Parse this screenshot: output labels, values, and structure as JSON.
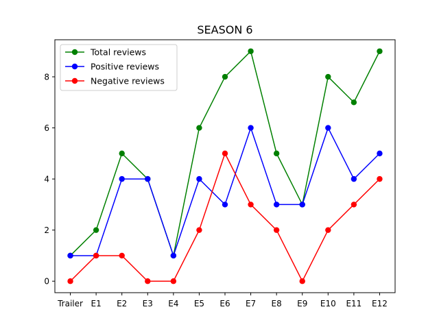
{
  "chart_data": {
    "type": "line",
    "title": "SEASON 6",
    "xlabel": "",
    "ylabel": "",
    "categories": [
      "Trailer",
      "E1",
      "E2",
      "E3",
      "E4",
      "E5",
      "E6",
      "E7",
      "E8",
      "E9",
      "E10",
      "E11",
      "E12"
    ],
    "ylim": [
      -0.45,
      9.45
    ],
    "yticks": [
      0,
      2,
      4,
      6,
      8
    ],
    "grid": false,
    "legend_position": "top-left",
    "series": [
      {
        "name": "Total reviews",
        "color": "#008000",
        "values": [
          1,
          2,
          5,
          4,
          1,
          6,
          8,
          9,
          5,
          3,
          8,
          7,
          9
        ]
      },
      {
        "name": "Positive reviews",
        "color": "#0000ff",
        "values": [
          1,
          1,
          4,
          4,
          1,
          4,
          3,
          6,
          3,
          3,
          6,
          4,
          5
        ]
      },
      {
        "name": "Negative reviews",
        "color": "#ff0000",
        "values": [
          0,
          1,
          1,
          0,
          0,
          2,
          5,
          3,
          2,
          0,
          2,
          3,
          4
        ]
      }
    ]
  }
}
